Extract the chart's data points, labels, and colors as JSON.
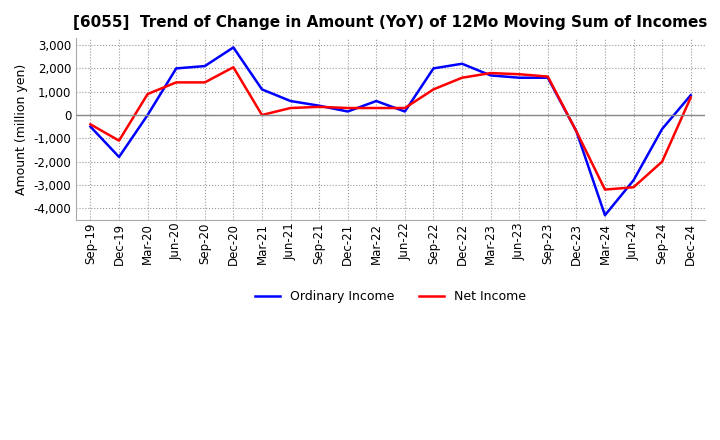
{
  "title": "[6055]  Trend of Change in Amount (YoY) of 12Mo Moving Sum of Incomes",
  "ylabel": "Amount (million yen)",
  "ylim": [
    -4500,
    3300
  ],
  "yticks": [
    -4000,
    -3000,
    -2000,
    -1000,
    0,
    1000,
    2000,
    3000
  ],
  "x_labels": [
    "Sep-19",
    "Dec-19",
    "Mar-20",
    "Jun-20",
    "Sep-20",
    "Dec-20",
    "Mar-21",
    "Jun-21",
    "Sep-21",
    "Dec-21",
    "Mar-22",
    "Jun-22",
    "Sep-22",
    "Dec-22",
    "Mar-23",
    "Jun-23",
    "Sep-23",
    "Dec-23",
    "Mar-24",
    "Jun-24",
    "Sep-24",
    "Dec-24"
  ],
  "ordinary_income": [
    -500,
    -1800,
    0,
    2000,
    2100,
    2900,
    1100,
    600,
    400,
    150,
    600,
    150,
    2000,
    2200,
    1700,
    1600,
    1600,
    -700,
    -4300,
    -2800,
    -600,
    850
  ],
  "net_income": [
    -400,
    -1100,
    900,
    1400,
    1400,
    2050,
    0,
    300,
    350,
    300,
    300,
    300,
    1100,
    1600,
    1800,
    1750,
    1650,
    -700,
    -3200,
    -3100,
    -2000,
    750
  ],
  "ordinary_color": "#0000FF",
  "net_color": "#FF0000",
  "background_color": "#FFFFFF",
  "plot_bg_color": "#FFFFFF",
  "grid_color": "#999999",
  "legend_ordinary": "Ordinary Income",
  "legend_net": "Net Income",
  "title_fontsize": 11,
  "axis_fontsize": 9,
  "tick_fontsize": 8.5,
  "line_width": 1.8
}
